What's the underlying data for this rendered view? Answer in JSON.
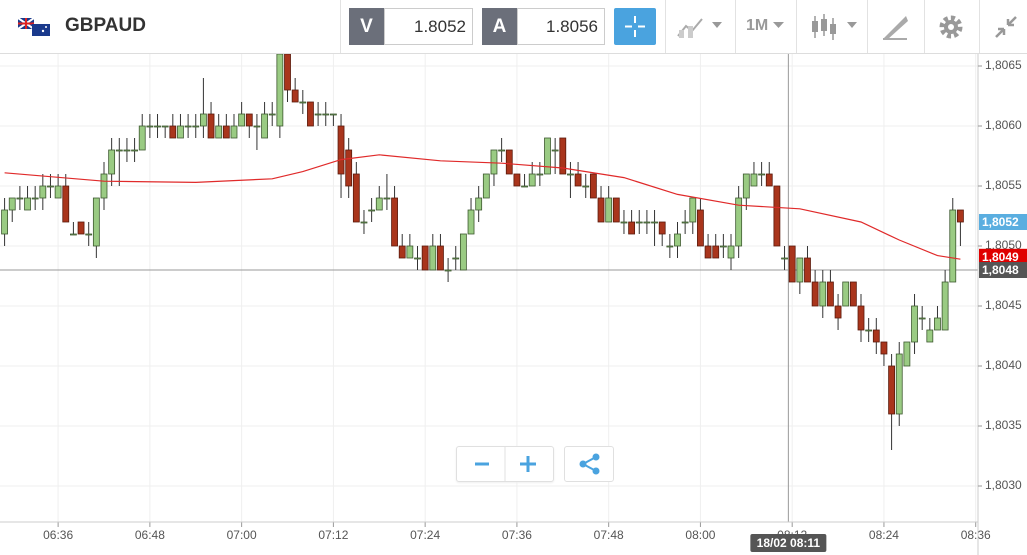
{
  "toolbar": {
    "symbol": "GBPAUD",
    "bid_label": "V",
    "bid": "1.8052",
    "ask_label": "A",
    "ask": "1.8056",
    "timeframe": "1M"
  },
  "chart_data": {
    "type": "candlestick",
    "up_color": "#9acb83",
    "down_color": "#a9351c",
    "ma_color": "#e02a2a",
    "xlim": [
      -0.6,
      127.3
    ],
    "xticks": [
      {
        "value": 7,
        "label": "06:36"
      },
      {
        "value": 19,
        "label": "06:48"
      },
      {
        "value": 31,
        "label": "07:00"
      },
      {
        "value": 43,
        "label": "07:12"
      },
      {
        "value": 55,
        "label": "07:24"
      },
      {
        "value": 67,
        "label": "07:36"
      },
      {
        "value": 79,
        "label": "07:48"
      },
      {
        "value": 91,
        "label": "08:00"
      },
      {
        "value": 103,
        "label": "08:12"
      },
      {
        "value": 115,
        "label": "08:24"
      },
      {
        "value": 127,
        "label": "08:36"
      }
    ],
    "ylim": [
      1.8027,
      1.8066
    ],
    "yticks": [
      {
        "value": 1.8065,
        "label": "1,8065"
      },
      {
        "value": 1.806,
        "label": "1,8060"
      },
      {
        "value": 1.8055,
        "label": "1,8055"
      },
      {
        "value": 1.805,
        "label": "1,8050"
      },
      {
        "value": 1.8045,
        "label": "1,8045"
      },
      {
        "value": 1.804,
        "label": "1,8040"
      },
      {
        "value": 1.8035,
        "label": "1,8035"
      },
      {
        "value": 1.803,
        "label": "1,8030"
      }
    ],
    "grid": true,
    "ohlc": [
      [
        1.8051,
        1.8054,
        1.805,
        1.8053
      ],
      [
        1.8053,
        1.8054,
        1.8052,
        1.8054
      ],
      [
        1.8054,
        1.8055,
        1.8053,
        1.8054
      ],
      [
        1.8053,
        1.8055,
        1.8053,
        1.8054
      ],
      [
        1.8054,
        1.8055,
        1.8053,
        1.8054
      ],
      [
        1.8054,
        1.8056,
        1.8053,
        1.8055
      ],
      [
        1.8055,
        1.8056,
        1.8054,
        1.8055
      ],
      [
        1.8054,
        1.8056,
        1.8054,
        1.8055
      ],
      [
        1.8055,
        1.8056,
        1.8052,
        1.8052
      ],
      [
        1.8051,
        1.8052,
        1.8051,
        1.8051
      ],
      [
        1.8052,
        1.8052,
        1.8051,
        1.8051
      ],
      [
        1.8051,
        1.8052,
        1.805,
        1.8051
      ],
      [
        1.805,
        1.8054,
        1.8049,
        1.8054
      ],
      [
        1.8054,
        1.8057,
        1.8053,
        1.8056
      ],
      [
        1.8056,
        1.8059,
        1.8055,
        1.8058
      ],
      [
        1.8058,
        1.8059,
        1.8055,
        1.8058
      ],
      [
        1.8058,
        1.8059,
        1.8057,
        1.8058
      ],
      [
        1.8058,
        1.8059,
        1.8057,
        1.8058
      ],
      [
        1.8058,
        1.8061,
        1.8058,
        1.806
      ],
      [
        1.806,
        1.8061,
        1.8059,
        1.806
      ],
      [
        1.806,
        1.8061,
        1.8059,
        1.806
      ],
      [
        1.806,
        1.806,
        1.8059,
        1.806
      ],
      [
        1.806,
        1.8061,
        1.8059,
        1.8059
      ],
      [
        1.8059,
        1.8061,
        1.8059,
        1.806
      ],
      [
        1.806,
        1.8061,
        1.8059,
        1.806
      ],
      [
        1.806,
        1.8061,
        1.8059,
        1.806
      ],
      [
        1.806,
        1.8064,
        1.8059,
        1.8061
      ],
      [
        1.8061,
        1.8062,
        1.8059,
        1.8059
      ],
      [
        1.8059,
        1.8061,
        1.8059,
        1.806
      ],
      [
        1.806,
        1.8061,
        1.8059,
        1.8059
      ],
      [
        1.8059,
        1.8061,
        1.8059,
        1.806
      ],
      [
        1.806,
        1.8062,
        1.806,
        1.8061
      ],
      [
        1.8061,
        1.8061,
        1.8059,
        1.806
      ],
      [
        1.806,
        1.8061,
        1.8058,
        1.806
      ],
      [
        1.8059,
        1.8062,
        1.8059,
        1.8061
      ],
      [
        1.8061,
        1.8062,
        1.806,
        1.8061
      ],
      [
        1.806,
        1.8066,
        1.8059,
        1.8066
      ],
      [
        1.8066,
        1.8066,
        1.8062,
        1.8063
      ],
      [
        1.8063,
        1.8064,
        1.8062,
        1.8062
      ],
      [
        1.8062,
        1.8063,
        1.8061,
        1.8062
      ],
      [
        1.8062,
        1.8062,
        1.806,
        1.806
      ],
      [
        1.8061,
        1.8062,
        1.806,
        1.8061
      ],
      [
        1.8061,
        1.8062,
        1.806,
        1.8061
      ],
      [
        1.8061,
        1.8061,
        1.806,
        1.8061
      ],
      [
        1.806,
        1.8061,
        1.8054,
        1.8056
      ],
      [
        1.8058,
        1.8059,
        1.8054,
        1.8055
      ],
      [
        1.8056,
        1.8057,
        1.8052,
        1.8052
      ],
      [
        1.8052,
        1.8053,
        1.8051,
        1.8052
      ],
      [
        1.8053,
        1.8054,
        1.8052,
        1.8053
      ],
      [
        1.8053,
        1.8055,
        1.8053,
        1.8054
      ],
      [
        1.8054,
        1.8056,
        1.8053,
        1.8054
      ],
      [
        1.8054,
        1.8055,
        1.805,
        1.805
      ],
      [
        1.805,
        1.8051,
        1.8049,
        1.8049
      ],
      [
        1.8049,
        1.8051,
        1.8049,
        1.805
      ],
      [
        1.8049,
        1.805,
        1.8048,
        1.8049
      ],
      [
        1.805,
        1.805,
        1.8048,
        1.8048
      ],
      [
        1.8048,
        1.8051,
        1.8048,
        1.805
      ],
      [
        1.805,
        1.8051,
        1.8048,
        1.8048
      ],
      [
        1.8048,
        1.8049,
        1.8047,
        1.8048
      ],
      [
        1.8049,
        1.805,
        1.8048,
        1.8049
      ],
      [
        1.8048,
        1.8051,
        1.8048,
        1.8051
      ],
      [
        1.8051,
        1.8054,
        1.8051,
        1.8053
      ],
      [
        1.8053,
        1.8055,
        1.8052,
        1.8054
      ],
      [
        1.8054,
        1.8056,
        1.8054,
        1.8056
      ],
      [
        1.8056,
        1.8058,
        1.8055,
        1.8058
      ],
      [
        1.8058,
        1.8059,
        1.8057,
        1.8058
      ],
      [
        1.8058,
        1.8058,
        1.8056,
        1.8056
      ],
      [
        1.8056,
        1.8056,
        1.8055,
        1.8055
      ],
      [
        1.8055,
        1.8056,
        1.8055,
        1.8055
      ],
      [
        1.8055,
        1.8057,
        1.8055,
        1.8056
      ],
      [
        1.8056,
        1.8057,
        1.8055,
        1.8056
      ],
      [
        1.8056,
        1.8059,
        1.8056,
        1.8059
      ],
      [
        1.8058,
        1.8059,
        1.8056,
        1.8058
      ],
      [
        1.8059,
        1.8059,
        1.8056,
        1.8056
      ],
      [
        1.8056,
        1.8057,
        1.8054,
        1.8056
      ],
      [
        1.8056,
        1.8057,
        1.8055,
        1.8055
      ],
      [
        1.8055,
        1.8056,
        1.8054,
        1.8055
      ],
      [
        1.8056,
        1.8056,
        1.8054,
        1.8054
      ],
      [
        1.8054,
        1.8055,
        1.8052,
        1.8052
      ],
      [
        1.8052,
        1.8055,
        1.8052,
        1.8054
      ],
      [
        1.8054,
        1.8054,
        1.8052,
        1.8052
      ],
      [
        1.8052,
        1.8053,
        1.8051,
        1.8052
      ],
      [
        1.8052,
        1.8053,
        1.8051,
        1.8051
      ],
      [
        1.8052,
        1.8053,
        1.8051,
        1.8052
      ],
      [
        1.8052,
        1.8053,
        1.8051,
        1.8052
      ],
      [
        1.8052,
        1.8053,
        1.805,
        1.8052
      ],
      [
        1.8052,
        1.8052,
        1.805,
        1.8051
      ],
      [
        1.805,
        1.8051,
        1.8049,
        1.805
      ],
      [
        1.805,
        1.8052,
        1.8049,
        1.8051
      ],
      [
        1.8052,
        1.8053,
        1.8051,
        1.8052
      ],
      [
        1.8052,
        1.8054,
        1.8051,
        1.8054
      ],
      [
        1.8053,
        1.8054,
        1.805,
        1.805
      ],
      [
        1.805,
        1.8051,
        1.8049,
        1.8049
      ],
      [
        1.805,
        1.8051,
        1.8049,
        1.8049
      ],
      [
        1.805,
        1.8051,
        1.8049,
        1.805
      ],
      [
        1.8049,
        1.8051,
        1.8048,
        1.805
      ],
      [
        1.805,
        1.8055,
        1.8049,
        1.8054
      ],
      [
        1.8054,
        1.8056,
        1.8053,
        1.8056
      ],
      [
        1.8055,
        1.8057,
        1.8055,
        1.8056
      ],
      [
        1.8056,
        1.8057,
        1.8055,
        1.8056
      ],
      [
        1.8056,
        1.8057,
        1.8055,
        1.8055
      ],
      [
        1.8055,
        1.8055,
        1.805,
        1.805
      ],
      [
        1.8049,
        1.805,
        1.8048,
        1.8049
      ],
      [
        1.805,
        1.805,
        1.8047,
        1.8047
      ],
      [
        1.8047,
        1.8049,
        1.8046,
        1.8049
      ],
      [
        1.8049,
        1.805,
        1.8047,
        1.8047
      ],
      [
        1.8047,
        1.8048,
        1.8045,
        1.8045
      ],
      [
        1.8045,
        1.8048,
        1.8044,
        1.8047
      ],
      [
        1.8047,
        1.8048,
        1.8045,
        1.8045
      ],
      [
        1.8045,
        1.8046,
        1.8043,
        1.8044
      ],
      [
        1.8045,
        1.8047,
        1.8045,
        1.8047
      ],
      [
        1.8047,
        1.8047,
        1.8045,
        1.8045
      ],
      [
        1.8045,
        1.8046,
        1.8042,
        1.8043
      ],
      [
        1.8043,
        1.8044,
        1.8042,
        1.8043
      ],
      [
        1.8043,
        1.8044,
        1.8041,
        1.8042
      ],
      [
        1.8042,
        1.8042,
        1.804,
        1.8041
      ],
      [
        1.804,
        1.8041,
        1.8033,
        1.8036
      ],
      [
        1.8036,
        1.8042,
        1.8035,
        1.8041
      ],
      [
        1.804,
        1.8042,
        1.804,
        1.8042
      ],
      [
        1.8042,
        1.8046,
        1.8041,
        1.8045
      ],
      [
        1.8044,
        1.8045,
        1.8043,
        1.8044
      ],
      [
        1.8042,
        1.8044,
        1.8042,
        1.8043
      ],
      [
        1.8043,
        1.8045,
        1.8043,
        1.8044
      ],
      [
        1.8043,
        1.8048,
        1.8043,
        1.8047
      ],
      [
        1.8047,
        1.8054,
        1.8047,
        1.8053
      ],
      [
        1.8053,
        1.8053,
        1.805,
        1.8052
      ]
    ],
    "ma": {
      "x": [
        0,
        13,
        25,
        35,
        39,
        44,
        49,
        57,
        65,
        73,
        81,
        88,
        96,
        104,
        112,
        117,
        122,
        125
      ],
      "values": [
        1.80561,
        1.80554,
        1.80553,
        1.80556,
        1.80562,
        1.80572,
        1.80576,
        1.80571,
        1.80569,
        1.80565,
        1.80557,
        1.80543,
        1.80534,
        1.80531,
        1.8052,
        1.80505,
        1.80492,
        1.80489
      ]
    },
    "price_labels": [
      {
        "value": 1.8052,
        "label": "1,8052",
        "color": "#5aaee0"
      },
      {
        "value": 1.80491,
        "label": "1,8049",
        "color": "#e00000"
      }
    ],
    "crosshair": {
      "y": {
        "value": 1.8048,
        "label": "1,8048"
      },
      "x": {
        "value": 102.5,
        "label": "18/02 08:11"
      }
    }
  }
}
